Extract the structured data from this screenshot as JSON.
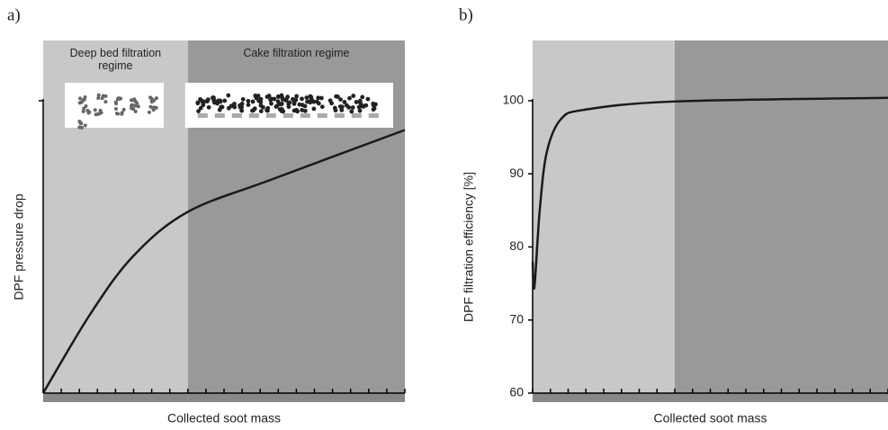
{
  "chart_data": [
    {
      "type": "line",
      "panel": "a)",
      "xlabel": "Collected soot mass",
      "ylabel": "DPF pressure drop",
      "x": [
        0,
        1.3,
        2.5,
        4,
        6.3,
        10
      ],
      "values": [
        0,
        0.27,
        0.47,
        0.62,
        0.73,
        0.9
      ],
      "color": "#1a1a1a",
      "xlim": [
        0,
        10
      ],
      "ylim": [
        0,
        1
      ],
      "xticks": [
        0,
        0.5,
        1,
        1.5,
        2,
        2.5,
        3,
        3.5,
        4,
        4.5,
        5,
        5.5,
        6,
        6.5,
        7,
        7.5,
        8,
        8.5,
        9,
        9.5,
        10
      ],
      "regions": [
        {
          "label": "Deep bed filtration regime",
          "start": 0,
          "end": 4,
          "color": "#c8c8c8"
        },
        {
          "label": "Cake filtration regime",
          "start": 4,
          "end": 10,
          "color": "#999999"
        }
      ]
    },
    {
      "type": "line",
      "panel": "b)",
      "xlabel": "Collected soot mass",
      "ylabel": "DPF filtration efficiency [%]",
      "x": [
        0,
        0.05,
        0.2,
        0.4,
        0.8,
        1.5,
        4,
        10
      ],
      "values": [
        78,
        74.5,
        85,
        93,
        97.5,
        98.8,
        99.9,
        100.4
      ],
      "color": "#1a1a1a",
      "xlim": [
        0,
        10
      ],
      "ylim": [
        60,
        100
      ],
      "yticks": [
        60,
        70,
        80,
        90,
        100
      ],
      "xticks": [
        0,
        0.5,
        1,
        1.5,
        2,
        2.5,
        3,
        3.5,
        4,
        4.5,
        5,
        5.5,
        6,
        6.5,
        7,
        7.5,
        8,
        8.5,
        9,
        9.5,
        10
      ],
      "regions": [
        {
          "start": 0,
          "end": 4,
          "color": "#c8c8c8"
        },
        {
          "start": 4,
          "end": 10,
          "color": "#999999"
        }
      ]
    }
  ]
}
